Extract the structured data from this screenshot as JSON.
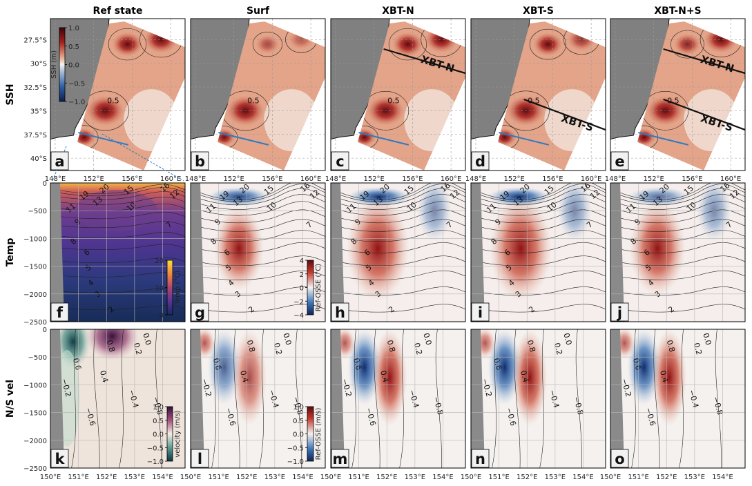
{
  "columns": [
    "Ref state",
    "Surf",
    "XBT-N",
    "XBT-S",
    "XBT-N+S"
  ],
  "rows": [
    "SSH",
    "Temp",
    "N/S vel"
  ],
  "panel_letters": [
    "a",
    "b",
    "c",
    "d",
    "e",
    "f",
    "g",
    "h",
    "i",
    "j",
    "k",
    "l",
    "m",
    "n",
    "o"
  ],
  "colorbars": {
    "ssh": {
      "label": "SSH (m)",
      "ticks": [
        "1.0",
        "0.5",
        "0.0",
        "−0.5",
        "−1.0"
      ]
    },
    "temp": {
      "label": "Temp (°C)",
      "ticks": [
        "20",
        "10",
        "0"
      ]
    },
    "temp_diff": {
      "label": "Ref-OSSE (°C)",
      "ticks": [
        "4",
        "2",
        "0",
        "−2",
        "−4"
      ]
    },
    "vel": {
      "label": "velocity (m/s)",
      "ticks": [
        "1.0",
        "0.5",
        "0.0",
        "−0.5",
        "−1.0"
      ]
    },
    "vel_diff": {
      "label": "Ref-OSSE (m/s)",
      "ticks": [
        "1.0",
        "0.5",
        "0.0",
        "−0.5",
        "−1.0"
      ]
    }
  },
  "annotations": {
    "xbt_n": "XBT-N",
    "xbt_s": "XBT-S"
  },
  "chart_data": [
    {
      "type": "heatmap",
      "name": "SSH maps",
      "xlabel": "",
      "ylabel": "",
      "xticks": [
        "148°E",
        "152°E",
        "156°E",
        "160°E"
      ],
      "yticks": [
        "27.5°S",
        "30°S",
        "32.5°S",
        "35°S",
        "37.5°S",
        "40°S"
      ],
      "xlim": [
        147.5,
        161.5
      ],
      "ylim": [
        -41.3,
        -25.3
      ],
      "contour_label": "0.5",
      "eddies": [
        {
          "lon": 153.2,
          "lat": -35.0,
          "ssh": 1.0
        },
        {
          "lon": 155.5,
          "lat": -28.0,
          "ssh": 0.8
        },
        {
          "lon": 159.0,
          "lat": -27.5,
          "ssh": 0.9
        },
        {
          "lon": 151.0,
          "lat": -37.8,
          "ssh": 0.6
        }
      ],
      "sections": {
        "xbt_n": {
          "lon": [
            153.0,
            162.0
          ],
          "lat": [
            -28.5,
            -31.2
          ]
        },
        "xbt_s": {
          "lon": [
            153.0,
            162.0
          ],
          "lat": [
            -33.8,
            -37.2
          ]
        },
        "transect": {
          "lon": [
            150.4,
            155.6
          ],
          "lat": [
            -37.3,
            -38.6
          ]
        }
      }
    },
    {
      "type": "heatmap",
      "name": "Temperature sections",
      "xlabel": "",
      "ylabel": "",
      "yticks": [
        "0",
        "−500",
        "−1000",
        "−1500",
        "−2000",
        "−2500"
      ],
      "ylim": [
        -2500,
        0
      ],
      "contour_labels": [
        "20",
        "19",
        "16",
        "15",
        "13",
        "12",
        "11",
        "10",
        "9",
        "8",
        "7",
        "6",
        "5",
        "4",
        "3",
        "2"
      ]
    },
    {
      "type": "heatmap",
      "name": "N/S velocity sections",
      "xlabel": "",
      "ylabel": "",
      "xticks": [
        "150°E",
        "151°E",
        "152°E",
        "153°E",
        "154°E"
      ],
      "yticks": [
        "0",
        "−500",
        "−1000",
        "−1500",
        "−2000",
        "−2500"
      ],
      "xlim": [
        150,
        154.8
      ],
      "ylim": [
        -2500,
        0
      ],
      "contour_labels": [
        "0.8",
        "0.6",
        "0.4",
        "0.2",
        "0.0",
        "−0.2",
        "−0.4",
        "−0.6",
        "−0.8"
      ]
    }
  ]
}
